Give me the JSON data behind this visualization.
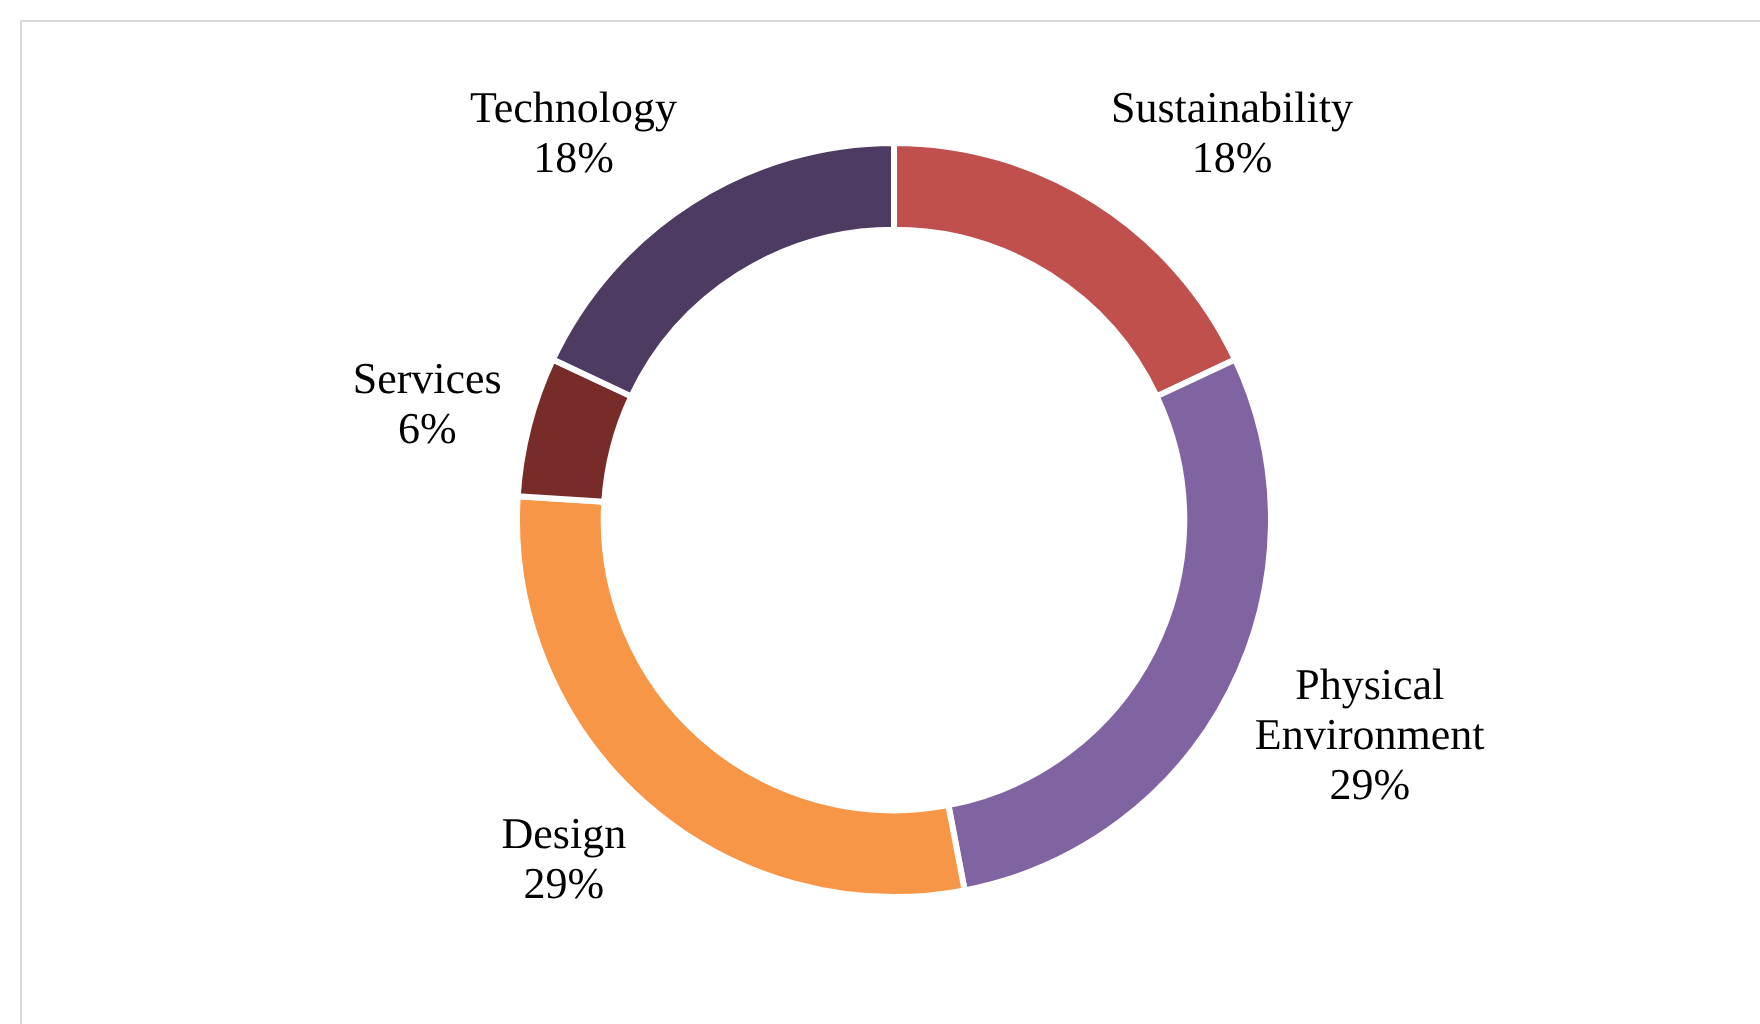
{
  "chart_data": {
    "type": "donut",
    "categories": [
      "Sustainability",
      "Physical Environment",
      "Design",
      "Services",
      "Technology"
    ],
    "values": [
      18,
      29,
      29,
      6,
      18
    ],
    "colors": [
      "#c0504d",
      "#8064a2",
      "#f79646",
      "#772c2a",
      "#4e3b62"
    ],
    "value_labels": [
      "18%",
      "29%",
      "29%",
      "6%",
      "18%"
    ],
    "legend": false
  }
}
